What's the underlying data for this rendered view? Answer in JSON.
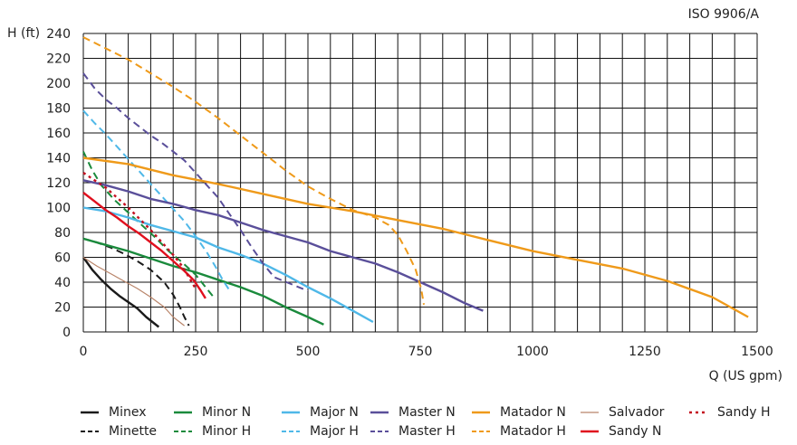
{
  "chart_data": {
    "type": "line",
    "standard": "ISO 9906/A",
    "xlabel": "Q (US gpm)",
    "ylabel": "H (ft)",
    "xlim": [
      0,
      1500
    ],
    "ylim": [
      0,
      240
    ],
    "xticks": [
      0,
      250,
      500,
      750,
      1000,
      1250,
      1500
    ],
    "yticks": [
      0,
      20,
      40,
      60,
      80,
      100,
      120,
      140,
      160,
      180,
      200,
      220,
      240
    ],
    "grid": true,
    "legend_position": "bottom",
    "series": [
      {
        "name": "Minex",
        "color": "#1a1a1a",
        "style": "solid",
        "points": [
          [
            0,
            60
          ],
          [
            20,
            50
          ],
          [
            40,
            42
          ],
          [
            60,
            35
          ],
          [
            80,
            29
          ],
          [
            100,
            24
          ],
          [
            120,
            19
          ],
          [
            140,
            12
          ],
          [
            168,
            4
          ]
        ]
      },
      {
        "name": "Minette",
        "color": "#1a1a1a",
        "style": "dashed",
        "points": [
          [
            0,
            75
          ],
          [
            30,
            72
          ],
          [
            60,
            68
          ],
          [
            90,
            63
          ],
          [
            120,
            57
          ],
          [
            150,
            50
          ],
          [
            180,
            40
          ],
          [
            200,
            30
          ],
          [
            215,
            20
          ],
          [
            225,
            12
          ],
          [
            235,
            5
          ]
        ]
      },
      {
        "name": "Minor N",
        "color": "#1a8a3c",
        "style": "solid",
        "points": [
          [
            0,
            75
          ],
          [
            50,
            70
          ],
          [
            100,
            65
          ],
          [
            150,
            59
          ],
          [
            200,
            53
          ],
          [
            250,
            48
          ],
          [
            300,
            42
          ],
          [
            350,
            36
          ],
          [
            400,
            29
          ],
          [
            450,
            20
          ],
          [
            500,
            12
          ],
          [
            535,
            6
          ]
        ]
      },
      {
        "name": "Minor H",
        "color": "#1a8a3c",
        "style": "dashed",
        "points": [
          [
            0,
            145
          ],
          [
            20,
            130
          ],
          [
            40,
            118
          ],
          [
            70,
            106
          ],
          [
            100,
            96
          ],
          [
            130,
            86
          ],
          [
            160,
            76
          ],
          [
            190,
            65
          ],
          [
            220,
            56
          ],
          [
            250,
            46
          ],
          [
            270,
            37
          ],
          [
            290,
            28
          ]
        ]
      },
      {
        "name": "Major N",
        "color": "#4fb8e8",
        "style": "solid",
        "points": [
          [
            0,
            100
          ],
          [
            50,
            97
          ],
          [
            100,
            92
          ],
          [
            150,
            86
          ],
          [
            200,
            81
          ],
          [
            250,
            76
          ],
          [
            300,
            68
          ],
          [
            350,
            62
          ],
          [
            400,
            55
          ],
          [
            450,
            46
          ],
          [
            500,
            36
          ],
          [
            550,
            27
          ],
          [
            600,
            17
          ],
          [
            645,
            8
          ]
        ]
      },
      {
        "name": "Major H",
        "color": "#4fb8e8",
        "style": "dashed",
        "points": [
          [
            0,
            178
          ],
          [
            25,
            168
          ],
          [
            50,
            159
          ],
          [
            75,
            149
          ],
          [
            100,
            139
          ],
          [
            125,
            129
          ],
          [
            150,
            119
          ],
          [
            175,
            109
          ],
          [
            200,
            99
          ],
          [
            225,
            89
          ],
          [
            250,
            77
          ],
          [
            275,
            64
          ],
          [
            295,
            52
          ],
          [
            310,
            42
          ],
          [
            328,
            32
          ]
        ]
      },
      {
        "name": "Master N",
        "color": "#5a4f9a",
        "style": "solid",
        "points": [
          [
            0,
            122
          ],
          [
            50,
            118
          ],
          [
            100,
            113
          ],
          [
            150,
            107
          ],
          [
            200,
            103
          ],
          [
            250,
            98
          ],
          [
            300,
            94
          ],
          [
            350,
            88
          ],
          [
            400,
            82
          ],
          [
            450,
            77
          ],
          [
            500,
            72
          ],
          [
            550,
            65
          ],
          [
            600,
            60
          ],
          [
            650,
            55
          ],
          [
            700,
            48
          ],
          [
            750,
            40
          ],
          [
            800,
            32
          ],
          [
            850,
            23
          ],
          [
            890,
            17
          ]
        ]
      },
      {
        "name": "Master H",
        "color": "#5a4f9a",
        "style": "dashed",
        "points": [
          [
            0,
            208
          ],
          [
            25,
            196
          ],
          [
            50,
            187
          ],
          [
            75,
            180
          ],
          [
            100,
            172
          ],
          [
            125,
            165
          ],
          [
            150,
            158
          ],
          [
            175,
            152
          ],
          [
            200,
            145
          ],
          [
            225,
            138
          ],
          [
            250,
            128
          ],
          [
            275,
            118
          ],
          [
            300,
            108
          ],
          [
            325,
            95
          ],
          [
            350,
            82
          ],
          [
            375,
            68
          ],
          [
            400,
            55
          ],
          [
            425,
            44
          ],
          [
            500,
            33
          ]
        ]
      },
      {
        "name": "Matador N",
        "color": "#ef9a1a",
        "style": "solid",
        "points": [
          [
            0,
            140
          ],
          [
            100,
            135
          ],
          [
            200,
            126
          ],
          [
            300,
            119
          ],
          [
            400,
            111
          ],
          [
            500,
            103
          ],
          [
            600,
            97
          ],
          [
            700,
            90
          ],
          [
            800,
            83
          ],
          [
            900,
            74
          ],
          [
            1000,
            65
          ],
          [
            1100,
            58
          ],
          [
            1200,
            51
          ],
          [
            1300,
            41
          ],
          [
            1400,
            28
          ],
          [
            1480,
            12
          ]
        ]
      },
      {
        "name": "Matador H",
        "color": "#ef9a1a",
        "style": "dashed",
        "points": [
          [
            0,
            237
          ],
          [
            50,
            228
          ],
          [
            100,
            219
          ],
          [
            150,
            208
          ],
          [
            200,
            197
          ],
          [
            250,
            185
          ],
          [
            300,
            172
          ],
          [
            350,
            158
          ],
          [
            400,
            144
          ],
          [
            450,
            130
          ],
          [
            500,
            117
          ],
          [
            550,
            107
          ],
          [
            600,
            98
          ],
          [
            650,
            92
          ],
          [
            680,
            86
          ],
          [
            700,
            78
          ],
          [
            720,
            65
          ],
          [
            740,
            50
          ],
          [
            752,
            35
          ],
          [
            758,
            22
          ]
        ]
      },
      {
        "name": "Salvador",
        "color": "#b9856a",
        "style": "thin",
        "points": [
          [
            0,
            60
          ],
          [
            30,
            53
          ],
          [
            60,
            47
          ],
          [
            90,
            41
          ],
          [
            120,
            35
          ],
          [
            150,
            28
          ],
          [
            180,
            20
          ],
          [
            200,
            12
          ],
          [
            225,
            5
          ]
        ]
      },
      {
        "name": "Sandy N",
        "color": "#e0101e",
        "style": "solid",
        "points": [
          [
            0,
            112
          ],
          [
            25,
            105
          ],
          [
            50,
            98
          ],
          [
            75,
            92
          ],
          [
            100,
            85
          ],
          [
            125,
            79
          ],
          [
            150,
            72
          ],
          [
            175,
            65
          ],
          [
            200,
            57
          ],
          [
            225,
            49
          ],
          [
            245,
            42
          ],
          [
            260,
            34
          ],
          [
            272,
            27
          ]
        ]
      },
      {
        "name": "Sandy H",
        "color": "#c41020",
        "style": "dotted",
        "points": [
          [
            0,
            128
          ],
          [
            25,
            122
          ],
          [
            50,
            116
          ],
          [
            75,
            108
          ],
          [
            100,
            100
          ],
          [
            125,
            91
          ],
          [
            150,
            82
          ],
          [
            175,
            72
          ],
          [
            200,
            62
          ],
          [
            220,
            53
          ],
          [
            235,
            44
          ],
          [
            248,
            36
          ]
        ]
      }
    ]
  },
  "legend": {
    "items": [
      {
        "label": "Minex",
        "series": 0
      },
      {
        "label": "Minette",
        "series": 1
      },
      {
        "label": "Minor N",
        "series": 2
      },
      {
        "label": "Minor H",
        "series": 3
      },
      {
        "label": "Major N",
        "series": 4
      },
      {
        "label": "Major H",
        "series": 5
      },
      {
        "label": "Master N",
        "series": 6
      },
      {
        "label": "Master H",
        "series": 7
      },
      {
        "label": "Matador N",
        "series": 8
      },
      {
        "label": "Matador H",
        "series": 9
      },
      {
        "label": "Salvador",
        "series": 10
      },
      {
        "label": "Sandy N",
        "series": 11
      },
      {
        "label": "Sandy H",
        "series": 12
      }
    ]
  }
}
